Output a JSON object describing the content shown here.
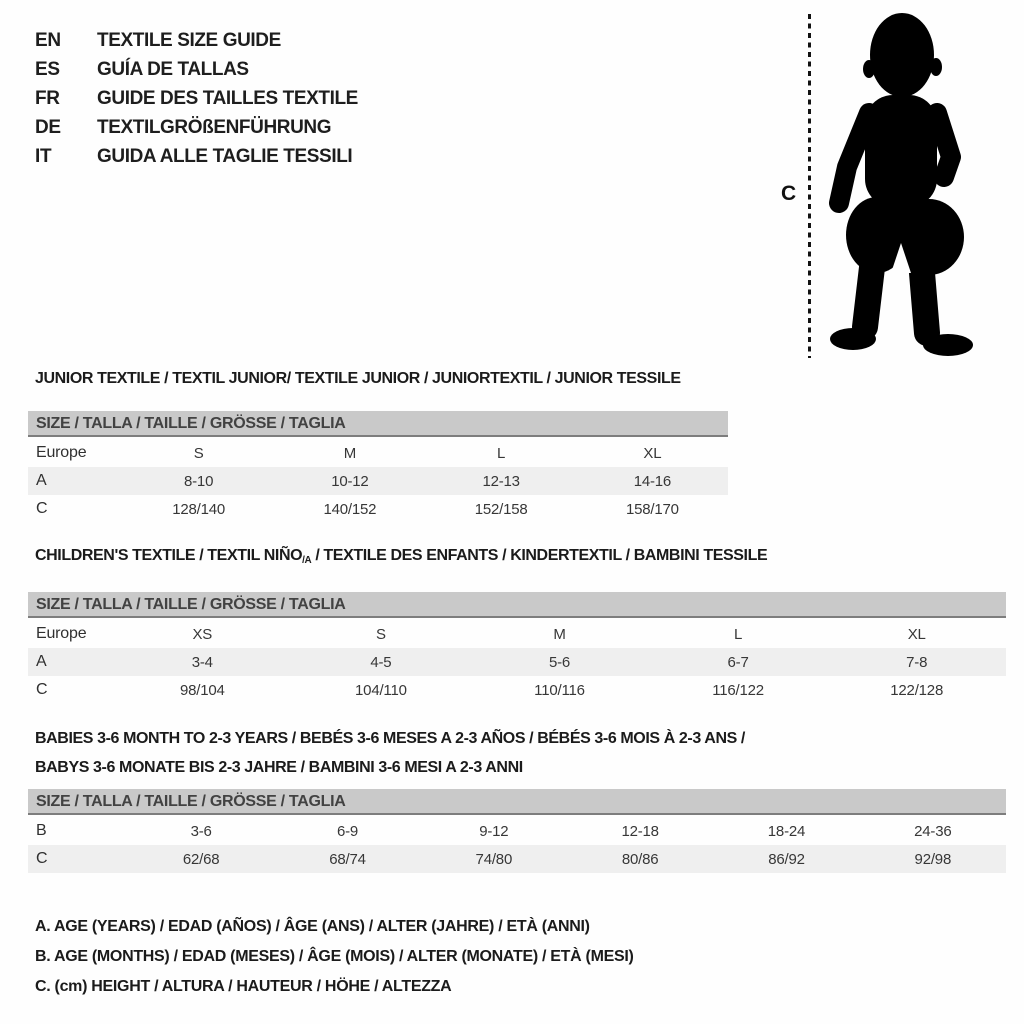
{
  "languages": [
    {
      "code": "EN",
      "name": "TEXTILE SIZE GUIDE"
    },
    {
      "code": "ES",
      "name": "GUÍA DE TALLAS"
    },
    {
      "code": "FR",
      "name": "GUIDE DES TAILLES TEXTILE"
    },
    {
      "code": "DE",
      "name": "TEXTILGRÖßENFÜHRUNG"
    },
    {
      "code": "IT",
      "name": "GUIDA ALLE TAGLIE TESSILI"
    }
  ],
  "figure": {
    "label": "C"
  },
  "sections": [
    {
      "title": "JUNIOR TEXTILE / TEXTIL JUNIOR/ TEXTILE JUNIOR / JUNIORTEXTIL / JUNIOR TESSILE",
      "size_header": "SIZE / TALLA / TAILLE / GRÖSSE / TAGLIA",
      "rows": [
        {
          "label": "Europe",
          "values": [
            "S",
            "M",
            "L",
            "XL"
          ]
        },
        {
          "label": "A",
          "values": [
            "8-10",
            "10-12",
            "12-13",
            "14-16"
          ]
        },
        {
          "label": "C",
          "values": [
            "128/140",
            "140/152",
            "152/158",
            "158/170"
          ]
        }
      ]
    },
    {
      "title_pre": "CHILDREN'S TEXTILE / TEXTIL NIÑO",
      "title_sub": "/A",
      "title_post": " / TEXTILE DES ENFANTS / KINDERTEXTIL / BAMBINI TESSILE",
      "size_header": "SIZE / TALLA / TAILLE / GRÖSSE / TAGLIA",
      "rows": [
        {
          "label": "Europe",
          "values": [
            "XS",
            "S",
            "M",
            "L",
            "XL"
          ]
        },
        {
          "label": "A",
          "values": [
            "3-4",
            "4-5",
            "5-6",
            "6-7",
            "7-8"
          ]
        },
        {
          "label": "C",
          "values": [
            "98/104",
            "104/110",
            "110/116",
            "116/122",
            "122/128"
          ]
        }
      ]
    },
    {
      "title_line1": "BABIES 3-6 MONTH TO 2-3 YEARS / BEBÉS 3-6 MESES A 2-3 AÑOS / BÉBÉS 3-6 MOIS À 2-3 ANS /",
      "title_line2": "BABYS 3-6 MONATE BIS 2-3 JAHRE / BAMBINI 3-6 MESI A 2-3 ANNI",
      "size_header": "SIZE / TALLA / TAILLE / GRÖSSE / TAGLIA",
      "rows": [
        {
          "label": "B",
          "values": [
            "3-6",
            "6-9",
            "9-12",
            "12-18",
            "18-24",
            "24-36"
          ]
        },
        {
          "label": "C",
          "values": [
            "62/68",
            "68/74",
            "74/80",
            "80/86",
            "86/92",
            "92/98"
          ]
        }
      ]
    }
  ],
  "legend": [
    "A. AGE (YEARS) / EDAD (AÑOS) / ÂGE (ANS) / ALTER (JAHRE) / ETÀ (ANNI)",
    "B. AGE (MONTHS) / EDAD (MESES) / ÂGE (MOIS) / ALTER (MONATE) / ETÀ (MESI)",
    "C. (cm) HEIGHT / ALTURA / HAUTEUR / HÖHE / ALTEZZA"
  ],
  "colors": {
    "header_bar_gray": "#c9c9c9",
    "shaded_row_gray": "#efefef",
    "text_black": "#1c1c1c",
    "silhouette_black": "#000000"
  }
}
